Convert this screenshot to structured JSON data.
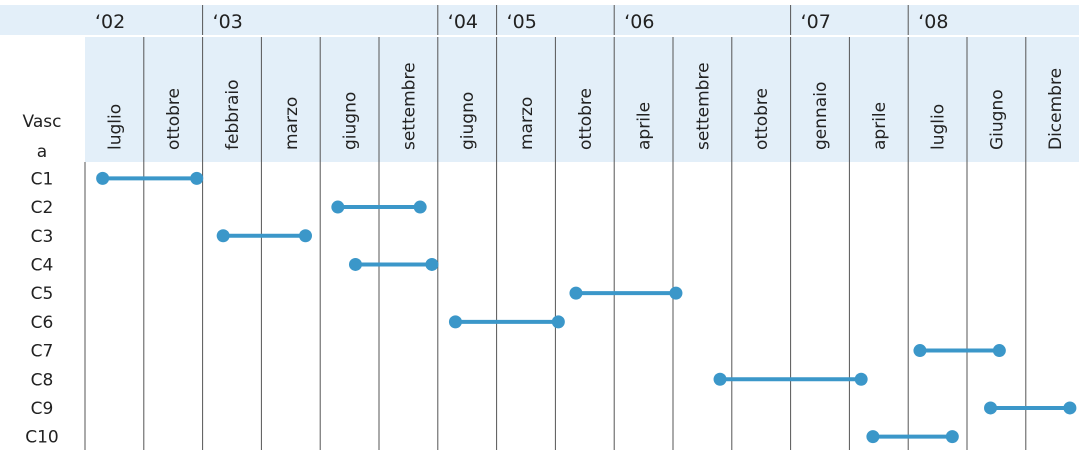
{
  "chart_data": {
    "type": "timeline",
    "row_header": "Vasca",
    "years": [
      {
        "label": "‘02",
        "start_col": 0
      },
      {
        "label": "‘03",
        "start_col": 2
      },
      {
        "label": "‘04",
        "start_col": 6
      },
      {
        "label": "‘05",
        "start_col": 7
      },
      {
        "label": "‘06",
        "start_col": 9
      },
      {
        "label": "‘07",
        "start_col": 12
      },
      {
        "label": "‘08",
        "start_col": 14
      }
    ],
    "columns": [
      "luglio",
      "ottobre",
      "febbraio",
      "marzo",
      "giugno",
      "settembre",
      "giugno",
      "marzo",
      "ottobre",
      "aprile",
      "settembre",
      "ottobre",
      "gennaio",
      "aprile",
      "luglio",
      "Giugno",
      "Dicembre"
    ],
    "rows": [
      "C1",
      "C2",
      "C3",
      "C4",
      "C5",
      "C6",
      "C7",
      "C8",
      "C9",
      "C10"
    ],
    "series": [
      {
        "row": "C1",
        "start": 0.3,
        "end": 1.9
      },
      {
        "row": "C2",
        "start": 4.3,
        "end": 5.7
      },
      {
        "row": "C3",
        "start": 2.35,
        "end": 3.75
      },
      {
        "row": "C4",
        "start": 4.6,
        "end": 5.9
      },
      {
        "row": "C5",
        "start": 8.35,
        "end": 10.05
      },
      {
        "row": "C6",
        "start": 6.3,
        "end": 8.05
      },
      {
        "row": "C7",
        "start": 14.2,
        "end": 15.55
      },
      {
        "row": "C8",
        "start": 10.8,
        "end": 13.2
      },
      {
        "row": "C9",
        "start": 15.4,
        "end": 16.75
      },
      {
        "row": "C10",
        "start": 13.4,
        "end": 14.75
      }
    ],
    "colors": {
      "header_bg": "#e3eff9",
      "bar": "#3b97c9",
      "gridline": "#555555",
      "text": "#222222"
    }
  }
}
